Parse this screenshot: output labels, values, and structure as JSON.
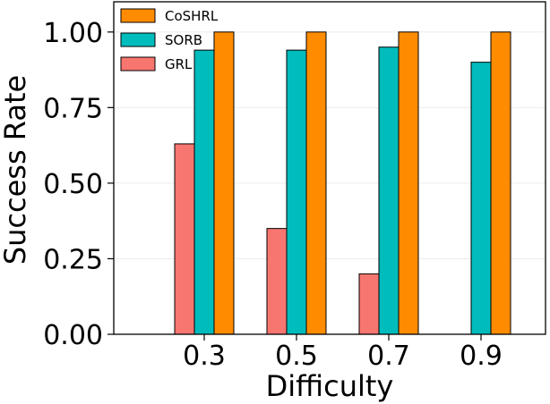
{
  "chart_data": {
    "type": "bar",
    "title": "",
    "xlabel": "Difficulty",
    "ylabel": "Success Rate",
    "categories": [
      "0.3",
      "0.5",
      "0.7",
      "0.9"
    ],
    "ylim": [
      0,
      1.1
    ],
    "yticks": [
      "0.00",
      "0.25",
      "0.50",
      "0.75",
      "1.00"
    ],
    "ytick_values": [
      0,
      0.25,
      0.5,
      0.75,
      1.0
    ],
    "grid": "horizontal",
    "legend_position": "top-left",
    "series": [
      {
        "name": "GRL",
        "color": "#f7766f",
        "values": [
          0.63,
          0.35,
          0.2,
          0
        ]
      },
      {
        "name": "SORB",
        "color": "#00bcbd",
        "values": [
          0.94,
          0.94,
          0.95,
          0.9
        ]
      },
      {
        "name": "CoSHRL",
        "color": "#ff8c00",
        "values": [
          1.0,
          1.0,
          1.0,
          1.0
        ]
      }
    ],
    "legend_order": [
      "CoSHRL",
      "SORB",
      "GRL"
    ]
  }
}
